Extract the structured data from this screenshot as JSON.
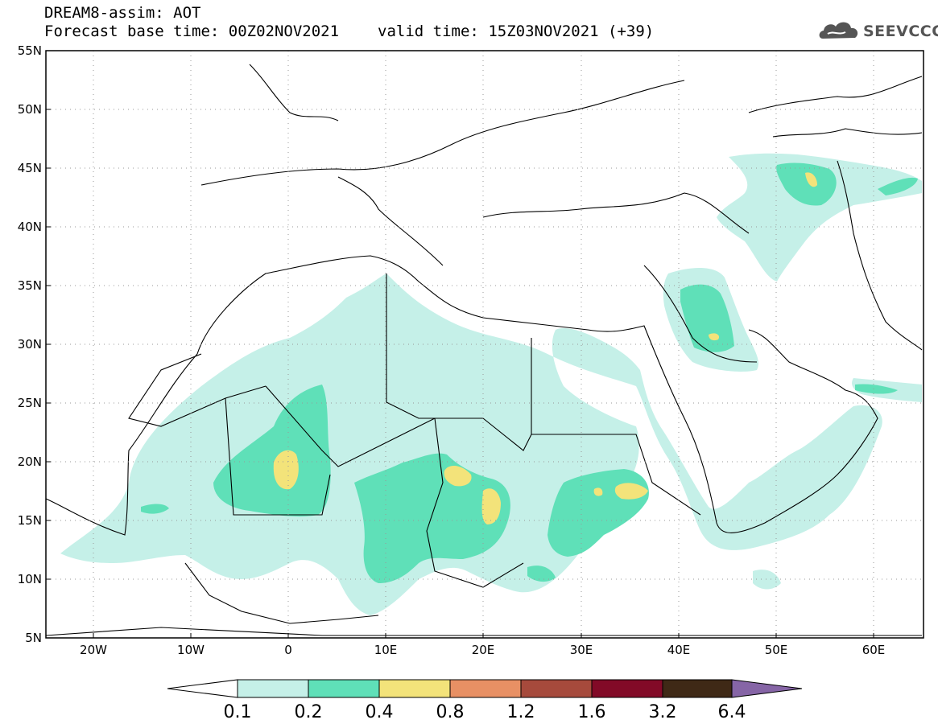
{
  "header": {
    "line1": "DREAM8-assim: AOT",
    "base_time": "Forecast base time: 00Z02NOV2021",
    "valid_time": "valid time: 15Z03NOV2021 (+39)"
  },
  "logo": {
    "text": "SEEVCCC",
    "icon": "cloud-icon"
  },
  "map": {
    "lat_labels": [
      "55N",
      "50N",
      "45N",
      "40N",
      "35N",
      "30N",
      "25N",
      "20N",
      "15N",
      "10N",
      "5N"
    ],
    "lon_labels": [
      "20W",
      "10W",
      "0",
      "10E",
      "20E",
      "30E",
      "40E",
      "50E",
      "60E"
    ],
    "extent": {
      "lon_min": -25,
      "lon_max": 65,
      "lat_min": 5,
      "lat_max": 55
    }
  },
  "colorbar": {
    "labels": [
      "0.1",
      "0.2",
      "0.4",
      "0.8",
      "1.2",
      "1.6",
      "3.2",
      "6.4"
    ],
    "colors": [
      "#ffffff",
      "#c5f0e8",
      "#5fe0b8",
      "#f3e37a",
      "#e89064",
      "#a64a3c",
      "#820a27",
      "#3f2916",
      "#8665a6"
    ]
  },
  "colors": {
    "aot_0_1": "#c5f0e8",
    "aot_0_2": "#5fe0b8",
    "aot_0_4": "#f3e37a"
  }
}
